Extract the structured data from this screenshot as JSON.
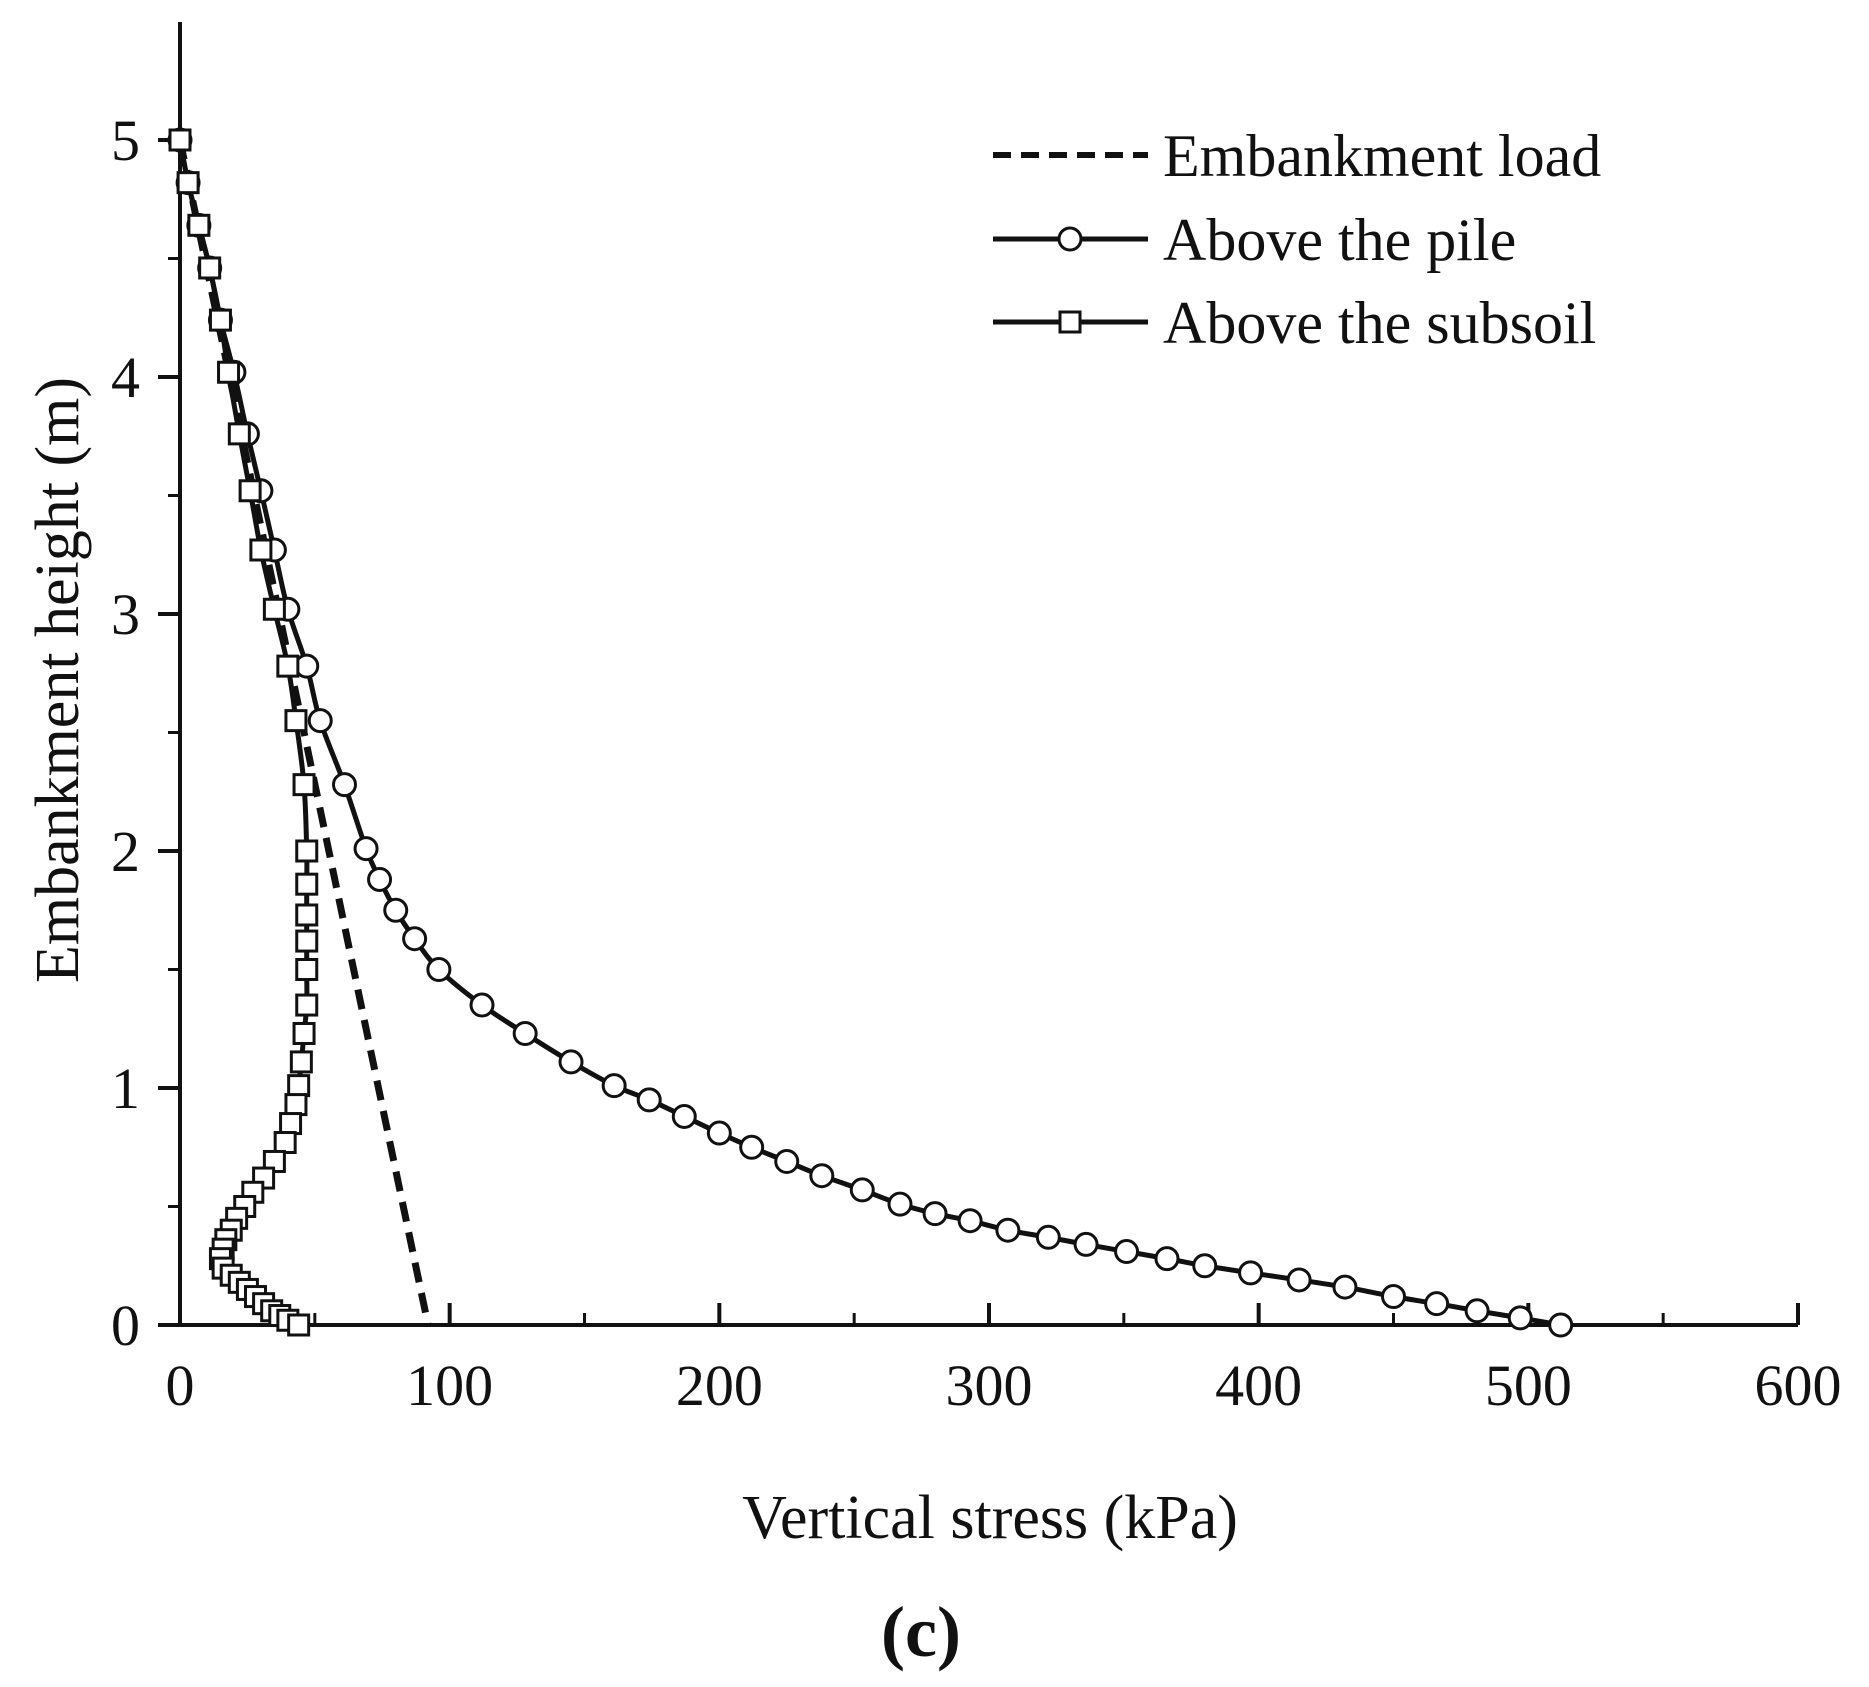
{
  "panel_label": "(c)",
  "chart_data": {
    "type": "line",
    "title": "",
    "xlabel": "Vertical stress (kPa)",
    "ylabel": "Embankment height (m)",
    "xlim": [
      0,
      600
    ],
    "ylim": [
      0,
      5.5
    ],
    "xticks": [
      0,
      100,
      200,
      300,
      400,
      500,
      600
    ],
    "xtick_labels": [
      "0",
      "100",
      "200",
      "300",
      "400",
      "500",
      "600"
    ],
    "yticks": [
      0,
      1,
      2,
      3,
      4,
      5
    ],
    "ytick_labels": [
      "0",
      "1",
      "2",
      "3",
      "4",
      "5"
    ],
    "legend_position": "top-right",
    "series": [
      {
        "name": "Embankment load",
        "style": "dashed",
        "marker": "none",
        "color": "#111111",
        "x": [
          0,
          92
        ],
        "y": [
          5,
          0
        ]
      },
      {
        "name": "Above the pile",
        "style": "solid",
        "marker": "circle",
        "color": "#111111",
        "x": [
          0,
          3,
          7,
          11,
          15,
          20,
          25,
          30,
          35,
          40,
          47,
          52,
          61,
          69,
          74,
          80,
          87,
          96,
          112,
          128,
          145,
          161,
          174,
          187,
          200,
          212,
          225,
          238,
          253,
          267,
          280,
          293,
          307,
          322,
          336,
          351,
          366,
          380,
          397,
          415,
          432,
          450,
          466,
          481,
          497,
          512
        ],
        "y": [
          5.0,
          4.82,
          4.64,
          4.46,
          4.24,
          4.02,
          3.76,
          3.52,
          3.27,
          3.02,
          2.78,
          2.55,
          2.28,
          2.01,
          1.88,
          1.75,
          1.63,
          1.5,
          1.35,
          1.23,
          1.11,
          1.01,
          0.95,
          0.88,
          0.81,
          0.75,
          0.69,
          0.63,
          0.57,
          0.51,
          0.47,
          0.44,
          0.4,
          0.37,
          0.34,
          0.31,
          0.28,
          0.25,
          0.22,
          0.19,
          0.16,
          0.12,
          0.09,
          0.06,
          0.03,
          0.0
        ]
      },
      {
        "name": "Above the subsoil",
        "style": "solid",
        "marker": "square",
        "color": "#111111",
        "x": [
          0,
          3,
          7,
          11,
          15,
          18,
          22,
          26,
          30,
          35,
          40,
          43,
          46,
          47,
          47,
          47,
          47,
          47,
          47,
          46,
          45,
          44,
          43,
          41,
          39,
          35,
          31,
          27,
          24,
          21,
          19,
          17,
          16,
          15,
          16,
          19,
          22,
          25,
          28,
          31,
          34,
          37,
          40,
          44
        ],
        "y": [
          5.0,
          4.82,
          4.64,
          4.46,
          4.24,
          4.02,
          3.76,
          3.52,
          3.27,
          3.02,
          2.78,
          2.55,
          2.28,
          2.0,
          1.86,
          1.73,
          1.62,
          1.5,
          1.35,
          1.23,
          1.11,
          1.01,
          0.93,
          0.85,
          0.77,
          0.69,
          0.62,
          0.56,
          0.5,
          0.45,
          0.4,
          0.36,
          0.32,
          0.28,
          0.24,
          0.21,
          0.18,
          0.15,
          0.12,
          0.09,
          0.06,
          0.04,
          0.02,
          0.0
        ]
      }
    ]
  }
}
